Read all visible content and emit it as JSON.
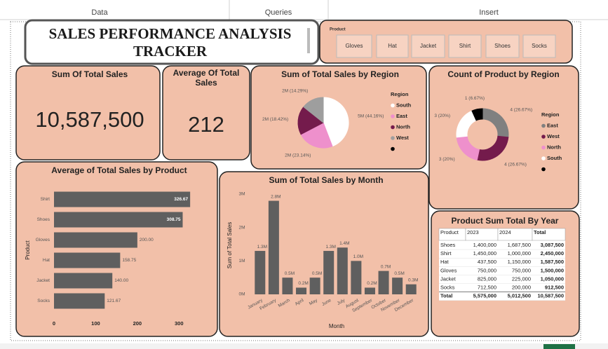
{
  "ribbon": [
    "Data",
    "Queries",
    "Insert"
  ],
  "title": "SALES PERFORMANCE ANALYSIS TRACKER",
  "slicer": {
    "title": "Product",
    "items": [
      "Gloves",
      "Hat",
      "Jacket",
      "Shirt",
      "Shoes",
      "Socks"
    ]
  },
  "kpis": [
    {
      "title": "Sum Of Total Sales",
      "value": "10,587,500"
    },
    {
      "title": "Average Of Total Sales",
      "value": "212"
    }
  ],
  "chart_data": [
    {
      "type": "pie",
      "title": "Sum of Total Sales by Region",
      "legend_title": "Region",
      "categories": [
        "South",
        "East",
        "North",
        "West",
        null
      ],
      "values": [
        44.16,
        23.14,
        18.42,
        14.29,
        null
      ],
      "value_labels": [
        "5M (44.16%)",
        "2M (23.14%)",
        "2M (18.42%)",
        "2M (14.29%)",
        null
      ],
      "colors": [
        "#ffffff",
        "#ee90cc",
        "#741b4c",
        "#9e9e9e",
        "#000000"
      ],
      "legend": "right"
    },
    {
      "type": "donut",
      "title": "Count of Product by Region",
      "legend_title": "Region",
      "categories": [
        "East",
        "West",
        "North",
        "South",
        null
      ],
      "values": [
        4,
        4,
        3,
        3,
        1
      ],
      "value_labels": [
        "4 (26.67%)",
        "4 (26.67%)",
        "3 (20%)",
        "3 (20%)",
        "1 (6.67%)"
      ],
      "colors": [
        "#808080",
        "#741b4c",
        "#ee90cc",
        "#ffffff",
        "#000000"
      ],
      "legend": "right"
    },
    {
      "type": "bar",
      "horizontal": true,
      "title": "Average of Total Sales by Product",
      "y_label": "Product",
      "categories": [
        "Shirt",
        "Shoes",
        "Gloves",
        "Hat",
        "Jacket",
        "Socks"
      ],
      "values": [
        326.67,
        308.75,
        200.0,
        158.75,
        140.0,
        121.67
      ],
      "value_labels": [
        "326.67",
        "308.75",
        "200.00",
        "158.75",
        "140.00",
        "121.67"
      ],
      "color": "#5f5f5f",
      "xlim": [
        0,
        350
      ],
      "xticks": [
        0,
        100,
        200,
        300
      ],
      "grid": false
    },
    {
      "type": "bar",
      "title": "Sum of Total Sales by Month",
      "y_label": "Sum of Total Sales",
      "x_label": "Month",
      "categories": [
        "January",
        "February",
        "March",
        "April",
        "May",
        "June",
        "July",
        "August",
        "September",
        "October",
        "November",
        "December"
      ],
      "values": [
        1.3,
        2.8,
        0.5,
        0.2,
        0.5,
        1.3,
        1.4,
        1.0,
        0.2,
        0.7,
        0.5,
        0.3
      ],
      "value_labels": [
        "1.3M",
        "2.8M",
        "0.5M",
        "0.2M",
        "0.5M",
        "1.3M",
        "1.4M",
        "1.0M",
        "0.2M",
        "0.7M",
        "0.5M",
        "0.3M"
      ],
      "color": "#5f5f5f",
      "ylim": [
        0,
        3
      ],
      "yticks": [
        {
          "value": 0,
          "label": "0M"
        },
        {
          "value": 1,
          "label": "1M"
        },
        {
          "value": 2,
          "label": "2M"
        },
        {
          "value": 3,
          "label": "3M"
        }
      ],
      "grid": false
    }
  ],
  "table": {
    "title": "Product Sum Total By Year",
    "header": [
      "Product",
      "2023",
      "2024",
      "Total"
    ],
    "rows": [
      [
        "Shoes",
        "1,400,000",
        "1,687,500",
        "3,087,500"
      ],
      [
        "Shirt",
        "1,450,000",
        "1,000,000",
        "2,450,000"
      ],
      [
        "Hat",
        "437,500",
        "1,150,000",
        "1,587,500"
      ],
      [
        "Gloves",
        "750,000",
        "750,000",
        "1,500,000"
      ],
      [
        "Jacket",
        "825,000",
        "225,000",
        "1,050,000"
      ],
      [
        "Socks",
        "712,500",
        "200,000",
        "912,500"
      ],
      [
        "Total",
        "5,575,000",
        "5,012,500",
        "10,587,500"
      ]
    ]
  }
}
